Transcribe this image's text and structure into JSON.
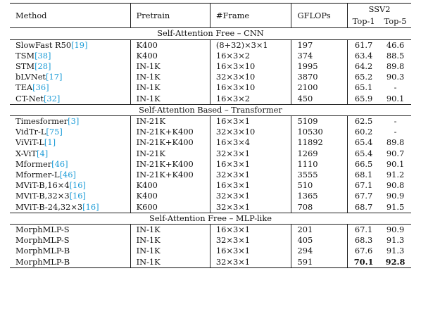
{
  "headers": {
    "method": "Method",
    "pretrain": "Pretrain",
    "frame": "#Frame",
    "gflops": "GFLOPs",
    "ssv2": "SSV2",
    "top1": "Top-1",
    "top5": "Top-5"
  },
  "sections": [
    {
      "title": "Self-Attention Free – CNN",
      "rows": [
        {
          "method": "SlowFast R50",
          "cite": "[19]",
          "pretrain": "K400",
          "frame": "(8+32)×3×1",
          "gflops": "197",
          "top1": "61.7",
          "top5": "46.6"
        },
        {
          "method": "TSM",
          "cite": "[38]",
          "pretrain": "K400",
          "frame": "16×3×2",
          "gflops": "374",
          "top1": "63.4",
          "top5": "88.5"
        },
        {
          "method": "STM",
          "cite": "[28]",
          "pretrain": "IN-1K",
          "frame": "16×3×10",
          "gflops": "1995",
          "top1": "64.2",
          "top5": "89.8"
        },
        {
          "method": "bLVNet",
          "cite": "[17]",
          "pretrain": "IN-1K",
          "frame": "32×3×10",
          "gflops": "3870",
          "top1": "65.2",
          "top5": "90.3"
        },
        {
          "method": "TEA",
          "cite": "[36]",
          "pretrain": "IN-1K",
          "frame": "16×3×10",
          "gflops": "2100",
          "top1": "65.1",
          "top5": "-"
        },
        {
          "method": "CT-Net",
          "cite": "[32]",
          "pretrain": "IN-1K",
          "frame": "16×3×2",
          "gflops": "450",
          "top1": "65.9",
          "top5": "90.1"
        }
      ]
    },
    {
      "title": "Self-Attention Based – Transformer",
      "rows": [
        {
          "method": "Timesformer",
          "cite": "[3]",
          "pretrain": "IN-21K",
          "frame": "16×3×1",
          "gflops": "5109",
          "top1": "62.5",
          "top5": "-"
        },
        {
          "method": "VidTr-L",
          "cite": "[75]",
          "pretrain": "IN-21K+K400",
          "frame": "32×3×10",
          "gflops": "10530",
          "top1": "60.2",
          "top5": "-"
        },
        {
          "method": "ViViT-L",
          "cite": "[1]",
          "pretrain": "IN-21K+K400",
          "frame": "16×3×4",
          "gflops": "11892",
          "top1": "65.4",
          "top5": "89.8"
        },
        {
          "method": "X-ViT",
          "cite": "[4]",
          "pretrain": "IN-21K",
          "frame": "32×3×1",
          "gflops": "1269",
          "top1": "65.4",
          "top5": "90.7"
        },
        {
          "method": "Mformer",
          "cite": "[46]",
          "pretrain": "IN-21K+K400",
          "frame": "16×3×1",
          "gflops": "1110",
          "top1": "66.5",
          "top5": "90.1"
        },
        {
          "method": "Mformer-L",
          "cite": "[46]",
          "pretrain": "IN-21K+K400",
          "frame": "32×3×1",
          "gflops": "3555",
          "top1": "68.1",
          "top5": "91.2"
        },
        {
          "method": "MViT-B,16×4",
          "cite": "[16]",
          "pretrain": "K400",
          "frame": "16×3×1",
          "gflops": "510",
          "top1": "67.1",
          "top5": "90.8"
        },
        {
          "method": "MViT-B,32×3",
          "cite": "[16]",
          "pretrain": "K400",
          "frame": "32×3×1",
          "gflops": "1365",
          "top1": "67.7",
          "top5": "90.9"
        },
        {
          "method": "MViT-B-24,32×3",
          "cite": "[16]",
          "pretrain": "K600",
          "frame": "32×3×1",
          "gflops": "708",
          "top1": "68.7",
          "top5": "91.5"
        }
      ]
    },
    {
      "title": "Self-Attention Free – MLP-like",
      "rows": [
        {
          "method": "MorphMLP-S",
          "cite": "",
          "pretrain": "IN-1K",
          "frame": "16×3×1",
          "gflops": "201",
          "top1": "67.1",
          "top5": "90.9"
        },
        {
          "method": "MorphMLP-S",
          "cite": "",
          "pretrain": "IN-1K",
          "frame": "32×3×1",
          "gflops": "405",
          "top1": "68.3",
          "top5": "91.3"
        },
        {
          "method": "MorphMLP-B",
          "cite": "",
          "pretrain": "IN-1K",
          "frame": "16×3×1",
          "gflops": "294",
          "top1": "67.6",
          "top5": "91.3"
        },
        {
          "method": "MorphMLP-B",
          "cite": "",
          "pretrain": "IN-1K",
          "frame": "32×3×1",
          "gflops": "591",
          "top1": "70.1",
          "top5": "92.8",
          "bold": true
        }
      ]
    }
  ]
}
